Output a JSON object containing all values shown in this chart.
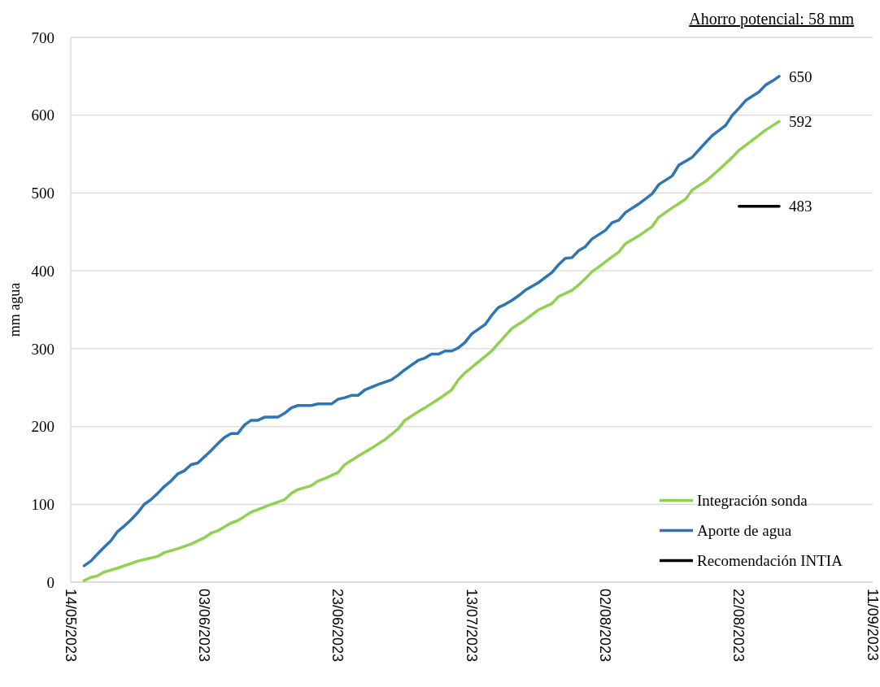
{
  "chart_data": {
    "type": "line",
    "ylabel": "mm agua",
    "annotations": [
      "Ahorro potencial: 58 mm"
    ],
    "xlim": [
      "2023-05-14",
      "2023-09-11"
    ],
    "xticks": [
      {
        "value": "2023-05-14",
        "label": "14/05/2023"
      },
      {
        "value": "2023-06-03",
        "label": "03/06/2023"
      },
      {
        "value": "2023-06-23",
        "label": "23/06/2023"
      },
      {
        "value": "2023-07-13",
        "label": "13/07/2023"
      },
      {
        "value": "2023-08-02",
        "label": "02/08/2023"
      },
      {
        "value": "2023-08-22",
        "label": "22/08/2023"
      },
      {
        "value": "2023-09-11",
        "label": "11/09/2023"
      }
    ],
    "ylim": [
      0,
      700
    ],
    "yticks": [
      0,
      100,
      200,
      300,
      400,
      500,
      600,
      700
    ],
    "grid": "y",
    "legend": "bottom right",
    "line_style": "solid",
    "series": [
      {
        "name": "Integración sonda",
        "color": "#92d050",
        "x": [
          "2023-05-16",
          "2023-05-17",
          "2023-05-18",
          "2023-05-19",
          "2023-05-21",
          "2023-05-23",
          "2023-05-24",
          "2023-05-25",
          "2023-05-27",
          "2023-05-28",
          "2023-05-30",
          "2023-06-01",
          "2023-06-03",
          "2023-06-04",
          "2023-06-05",
          "2023-06-07",
          "2023-06-08",
          "2023-06-10",
          "2023-06-13",
          "2023-06-15",
          "2023-06-16",
          "2023-06-17",
          "2023-06-19",
          "2023-06-20",
          "2023-06-21",
          "2023-06-23",
          "2023-06-24",
          "2023-06-26",
          "2023-06-28",
          "2023-06-30",
          "2023-07-02",
          "2023-07-03",
          "2023-07-05",
          "2023-07-06",
          "2023-07-08",
          "2023-07-10",
          "2023-07-11",
          "2023-07-12",
          "2023-07-14",
          "2023-07-16",
          "2023-07-17",
          "2023-07-19",
          "2023-07-21",
          "2023-07-23",
          "2023-07-25",
          "2023-07-26",
          "2023-07-28",
          "2023-07-29",
          "2023-07-30",
          "2023-07-31",
          "2023-08-01",
          "2023-08-03",
          "2023-08-04",
          "2023-08-05",
          "2023-08-07",
          "2023-08-09",
          "2023-08-10",
          "2023-08-12",
          "2023-08-14",
          "2023-08-15",
          "2023-08-17",
          "2023-08-19",
          "2023-08-21",
          "2023-08-22",
          "2023-08-24",
          "2023-08-26",
          "2023-08-28"
        ],
        "values": [
          2,
          6,
          8,
          13,
          18,
          24,
          27,
          29,
          33,
          38,
          43,
          49,
          57,
          63,
          66,
          76,
          79,
          90,
          100,
          106,
          114,
          119,
          124,
          130,
          133,
          141,
          151,
          162,
          172,
          183,
          197,
          208,
          219,
          224,
          235,
          247,
          260,
          269,
          283,
          297,
          307,
          326,
          337,
          350,
          358,
          367,
          375,
          382,
          390,
          399,
          405,
          418,
          424,
          435,
          445,
          457,
          469,
          481,
          492,
          504,
          515,
          530,
          546,
          555,
          568,
          581,
          592
        ],
        "value_labels": [
          null,
          null,
          null,
          null,
          null,
          null,
          null,
          null,
          null,
          null,
          null,
          null,
          null,
          null,
          null,
          null,
          null,
          null,
          null,
          null,
          null,
          null,
          null,
          null,
          null,
          null,
          null,
          null,
          null,
          null,
          null,
          null,
          null,
          null,
          null,
          null,
          null,
          null,
          null,
          null,
          null,
          null,
          null,
          null,
          null,
          null,
          null,
          null,
          null,
          null,
          null,
          null,
          null,
          null,
          null,
          null,
          null,
          null,
          null,
          null,
          null,
          null,
          null,
          null,
          null,
          null,
          "592"
        ]
      },
      {
        "name": "Aporte de agua",
        "color": "#2e75b6",
        "x": [
          "2023-05-16",
          "2023-05-17",
          "2023-05-18",
          "2023-05-19",
          "2023-05-20",
          "2023-05-21",
          "2023-05-22",
          "2023-05-23",
          "2023-05-24",
          "2023-05-25",
          "2023-05-26",
          "2023-05-27",
          "2023-05-28",
          "2023-05-29",
          "2023-05-30",
          "2023-05-31",
          "2023-06-01",
          "2023-06-02",
          "2023-06-03",
          "2023-06-04",
          "2023-06-05",
          "2023-06-06",
          "2023-06-07",
          "2023-06-08",
          "2023-06-09",
          "2023-06-10",
          "2023-06-11",
          "2023-06-12",
          "2023-06-14",
          "2023-06-15",
          "2023-06-16",
          "2023-06-17",
          "2023-06-19",
          "2023-06-20",
          "2023-06-22",
          "2023-06-23",
          "2023-06-24",
          "2023-06-25",
          "2023-06-26",
          "2023-06-27",
          "2023-06-29",
          "2023-07-01",
          "2023-07-02",
          "2023-07-03",
          "2023-07-05",
          "2023-07-06",
          "2023-07-07",
          "2023-07-08",
          "2023-07-09",
          "2023-07-10",
          "2023-07-11",
          "2023-07-12",
          "2023-07-13",
          "2023-07-15",
          "2023-07-16",
          "2023-07-17",
          "2023-07-18",
          "2023-07-19",
          "2023-07-20",
          "2023-07-21",
          "2023-07-23",
          "2023-07-25",
          "2023-07-26",
          "2023-07-27",
          "2023-07-28",
          "2023-07-29",
          "2023-07-30",
          "2023-07-31",
          "2023-08-02",
          "2023-08-03",
          "2023-08-04",
          "2023-08-05",
          "2023-08-07",
          "2023-08-09",
          "2023-08-10",
          "2023-08-12",
          "2023-08-13",
          "2023-08-15",
          "2023-08-17",
          "2023-08-18",
          "2023-08-20",
          "2023-08-21",
          "2023-08-22",
          "2023-08-23",
          "2023-08-25",
          "2023-08-26",
          "2023-08-27",
          "2023-08-28"
        ],
        "values": [
          21,
          27,
          36,
          45,
          53,
          65,
          72,
          80,
          89,
          100,
          106,
          114,
          123,
          130,
          139,
          143,
          151,
          153,
          161,
          169,
          178,
          186,
          191,
          191,
          202,
          208,
          208,
          212,
          212,
          217,
          224,
          227,
          227,
          229,
          229,
          235,
          237,
          240,
          240,
          247,
          254,
          260,
          266,
          273,
          285,
          288,
          293,
          293,
          297,
          297,
          301,
          308,
          319,
          331,
          343,
          353,
          357,
          362,
          368,
          375,
          385,
          398,
          408,
          416,
          417,
          426,
          431,
          441,
          452,
          462,
          465,
          475,
          486,
          499,
          511,
          522,
          536,
          546,
          565,
          574,
          587,
          600,
          609,
          619,
          630,
          639,
          644,
          650
        ],
        "value_labels": [
          null,
          null,
          null,
          null,
          null,
          null,
          null,
          null,
          null,
          null,
          null,
          null,
          null,
          null,
          null,
          null,
          null,
          null,
          null,
          null,
          null,
          null,
          null,
          null,
          null,
          null,
          null,
          null,
          null,
          null,
          null,
          null,
          null,
          null,
          null,
          null,
          null,
          null,
          null,
          null,
          null,
          null,
          null,
          null,
          null,
          null,
          null,
          null,
          null,
          null,
          null,
          null,
          null,
          null,
          null,
          null,
          null,
          null,
          null,
          null,
          null,
          null,
          null,
          null,
          null,
          null,
          null,
          null,
          null,
          null,
          null,
          null,
          null,
          null,
          null,
          null,
          null,
          null,
          null,
          null,
          null,
          null,
          null,
          null,
          null,
          null,
          null,
          "650"
        ]
      },
      {
        "name": "Recomendación INTIA",
        "color": "#000000",
        "x": [
          "2023-08-22",
          "2023-08-28"
        ],
        "values": [
          483,
          483
        ],
        "value_labels": [
          null,
          "483"
        ]
      }
    ]
  }
}
